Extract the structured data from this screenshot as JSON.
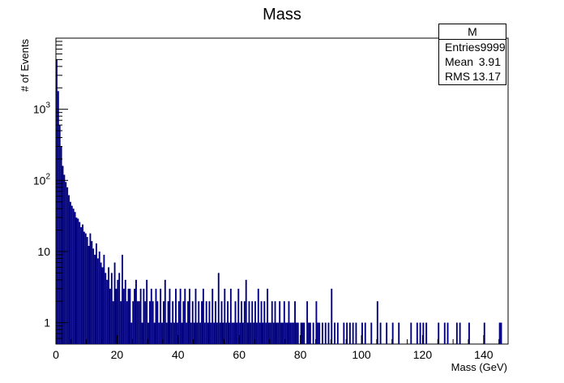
{
  "chart_data": {
    "type": "bar",
    "title": "Mass",
    "xlabel": "Mass (GeV)",
    "ylabel": "# of Events",
    "xlim": [
      0,
      148
    ],
    "ylim": [
      0.5,
      9999
    ],
    "log_y": true,
    "grid": false,
    "bin_width": 0.5,
    "x_ticks": [
      "0",
      "20",
      "40",
      "60",
      "80",
      "100",
      "120",
      "140"
    ],
    "y_ticks": [
      {
        "value": 1,
        "base": "1",
        "exp": ""
      },
      {
        "value": 10,
        "base": "10",
        "exp": ""
      },
      {
        "value": 100,
        "base": "10",
        "exp": "2"
      },
      {
        "value": 1000,
        "base": "10",
        "exp": "3"
      }
    ],
    "line_color": "#000080",
    "stats": {
      "name": "M",
      "rows": [
        {
          "label": "Entries",
          "value": "9999"
        },
        {
          "label": "Mean",
          "value": "3.91"
        },
        {
          "label": "RMS",
          "value": "13.17"
        }
      ]
    },
    "bins": [
      [
        0.0,
        5000
      ],
      [
        0.5,
        1800
      ],
      [
        1.0,
        600
      ],
      [
        1.5,
        300
      ],
      [
        2.0,
        160
      ],
      [
        2.5,
        120
      ],
      [
        3.0,
        95
      ],
      [
        3.5,
        80
      ],
      [
        4.0,
        62
      ],
      [
        4.5,
        50
      ],
      [
        5.0,
        44
      ],
      [
        5.5,
        40
      ],
      [
        6.0,
        36
      ],
      [
        6.5,
        30
      ],
      [
        7.0,
        29
      ],
      [
        7.5,
        26
      ],
      [
        8.0,
        22
      ],
      [
        8.5,
        24
      ],
      [
        9.0,
        19
      ],
      [
        9.5,
        18
      ],
      [
        10.0,
        16
      ],
      [
        10.5,
        12
      ],
      [
        11.0,
        18
      ],
      [
        11.5,
        14
      ],
      [
        12.0,
        11
      ],
      [
        12.5,
        9
      ],
      [
        13.0,
        13
      ],
      [
        13.5,
        8
      ],
      [
        14.0,
        10
      ],
      [
        14.5,
        7
      ],
      [
        15.0,
        6
      ],
      [
        15.5,
        9
      ],
      [
        16.0,
        5
      ],
      [
        16.5,
        4
      ],
      [
        17.0,
        6
      ],
      [
        17.5,
        3
      ],
      [
        18.0,
        5
      ],
      [
        18.5,
        2
      ],
      [
        19.0,
        7
      ],
      [
        19.5,
        3
      ],
      [
        20.0,
        4
      ],
      [
        20.5,
        5
      ],
      [
        21.0,
        2
      ],
      [
        21.5,
        9
      ],
      [
        22.0,
        3
      ],
      [
        22.5,
        4
      ],
      [
        23.0,
        2
      ],
      [
        23.5,
        3
      ],
      [
        24.0,
        3
      ],
      [
        24.5,
        1
      ],
      [
        25.0,
        2
      ],
      [
        25.5,
        3
      ],
      [
        26.0,
        4
      ],
      [
        26.5,
        2
      ],
      [
        27.0,
        2
      ],
      [
        27.5,
        3
      ],
      [
        28.0,
        1
      ],
      [
        28.5,
        3
      ],
      [
        29.0,
        2
      ],
      [
        29.5,
        4
      ],
      [
        30.0,
        1
      ],
      [
        30.5,
        2
      ],
      [
        31.0,
        3
      ],
      [
        31.5,
        2
      ],
      [
        32.0,
        1
      ],
      [
        32.5,
        3
      ],
      [
        33.0,
        2
      ],
      [
        33.5,
        1
      ],
      [
        34.0,
        3
      ],
      [
        34.5,
        1
      ],
      [
        35.0,
        2
      ],
      [
        35.5,
        4
      ],
      [
        36.0,
        1
      ],
      [
        36.5,
        2
      ],
      [
        37.0,
        3
      ],
      [
        37.5,
        1
      ],
      [
        38.0,
        2
      ],
      [
        38.5,
        1
      ],
      [
        39.0,
        3
      ],
      [
        39.5,
        1
      ],
      [
        40.0,
        2
      ],
      [
        40.5,
        3
      ],
      [
        41.0,
        1
      ],
      [
        41.5,
        2
      ],
      [
        42.0,
        3
      ],
      [
        42.5,
        1
      ],
      [
        43.0,
        2
      ],
      [
        43.5,
        3
      ],
      [
        44.0,
        1
      ],
      [
        44.5,
        2
      ],
      [
        45.0,
        1
      ],
      [
        45.5,
        3
      ],
      [
        46.0,
        1
      ],
      [
        46.5,
        2
      ],
      [
        47.0,
        1
      ],
      [
        47.5,
        2
      ],
      [
        48.0,
        3
      ],
      [
        48.5,
        1
      ],
      [
        49.0,
        2
      ],
      [
        49.5,
        1
      ],
      [
        50.0,
        2
      ],
      [
        50.5,
        1
      ],
      [
        51.0,
        3
      ],
      [
        51.5,
        1
      ],
      [
        52.0,
        2
      ],
      [
        52.5,
        1
      ],
      [
        53.0,
        5
      ],
      [
        53.5,
        1
      ],
      [
        54.0,
        2
      ],
      [
        54.5,
        1
      ],
      [
        55.0,
        3
      ],
      [
        55.5,
        1
      ],
      [
        56.0,
        2
      ],
      [
        56.5,
        1
      ],
      [
        57.0,
        3
      ],
      [
        57.5,
        1
      ],
      [
        58.0,
        1
      ],
      [
        58.5,
        2
      ],
      [
        59.0,
        1
      ],
      [
        59.5,
        3
      ],
      [
        60.0,
        1
      ],
      [
        60.5,
        2
      ],
      [
        61.0,
        1
      ],
      [
        61.5,
        2
      ],
      [
        62.0,
        4
      ],
      [
        62.5,
        1
      ],
      [
        63.0,
        2
      ],
      [
        63.5,
        1
      ],
      [
        64.0,
        2
      ],
      [
        64.5,
        1
      ],
      [
        65.0,
        2
      ],
      [
        65.5,
        1
      ],
      [
        66.0,
        3
      ],
      [
        66.5,
        1
      ],
      [
        67.0,
        2
      ],
      [
        67.5,
        1
      ],
      [
        68.0,
        2
      ],
      [
        68.5,
        1
      ],
      [
        69.0,
        3
      ],
      [
        69.5,
        1
      ],
      [
        70.0,
        1
      ],
      [
        70.5,
        2
      ],
      [
        71.0,
        1
      ],
      [
        71.5,
        2
      ],
      [
        72.0,
        1
      ],
      [
        72.5,
        1
      ],
      [
        73.0,
        2
      ],
      [
        73.5,
        1
      ],
      [
        74.0,
        1
      ],
      [
        74.5,
        2
      ],
      [
        75.0,
        1
      ],
      [
        75.5,
        1
      ],
      [
        76.0,
        2
      ],
      [
        76.5,
        1
      ],
      [
        77.0,
        1
      ],
      [
        77.5,
        1
      ],
      [
        78.0,
        2
      ],
      [
        78.5,
        1
      ],
      [
        79.0,
        1
      ],
      [
        80.0,
        1
      ],
      [
        80.5,
        1
      ],
      [
        81.0,
        1
      ],
      [
        82.0,
        2
      ],
      [
        82.5,
        1
      ],
      [
        83.0,
        1
      ],
      [
        84.0,
        1
      ],
      [
        85.0,
        2
      ],
      [
        85.5,
        1
      ],
      [
        86.0,
        1
      ],
      [
        87.0,
        1
      ],
      [
        88.0,
        1
      ],
      [
        89.0,
        1
      ],
      [
        90.0,
        3
      ],
      [
        91.0,
        1
      ],
      [
        92.0,
        1
      ],
      [
        94.0,
        1
      ],
      [
        95.0,
        1
      ],
      [
        96.0,
        1
      ],
      [
        97.0,
        1
      ],
      [
        98.0,
        1
      ],
      [
        100.0,
        1
      ],
      [
        101.0,
        1
      ],
      [
        103.0,
        1
      ],
      [
        105.0,
        2
      ],
      [
        106.0,
        1
      ],
      [
        108.0,
        1
      ],
      [
        110.0,
        1
      ],
      [
        112.0,
        1
      ],
      [
        116.0,
        1
      ],
      [
        118.0,
        1
      ],
      [
        119.0,
        1
      ],
      [
        120.0,
        1
      ],
      [
        121.0,
        1
      ],
      [
        125.0,
        1
      ],
      [
        127.0,
        1
      ],
      [
        128.0,
        1
      ],
      [
        131.0,
        1
      ],
      [
        132.0,
        1
      ],
      [
        135.0,
        1
      ],
      [
        140.0,
        1
      ],
      [
        145.0,
        1
      ],
      [
        145.5,
        1
      ]
    ]
  }
}
